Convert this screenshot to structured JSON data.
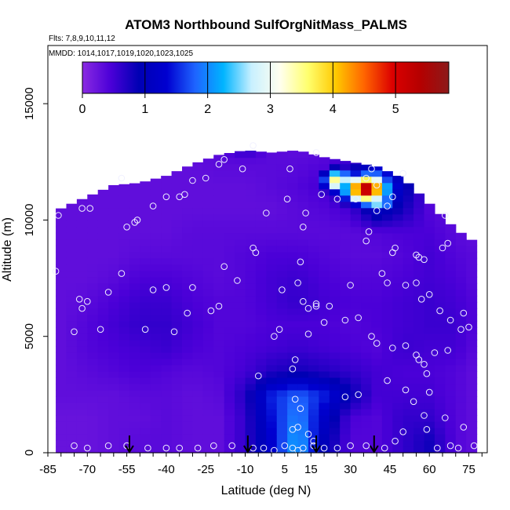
{
  "chart_data": {
    "type": "heatmap",
    "title": "ATOM3 Northbound SulfOrgNitMass_PALMS",
    "flights_text": "Flts: 7,8,9,10,11,12",
    "dates_text": "MMDD: 1014,1017,1019,1020,1023,1025",
    "xlabel": "Latitude (deg N)",
    "ylabel": "Altitude (m)",
    "xlim": [
      -85,
      82
    ],
    "ylim": [
      0,
      17500
    ],
    "x_ticks": [
      -85,
      -70,
      -55,
      -40,
      -25,
      -10,
      5,
      15,
      30,
      45,
      60,
      75
    ],
    "y_ticks": [
      0,
      5000,
      10000,
      15000
    ],
    "colorbar": {
      "range": [
        0,
        5.85
      ],
      "ticks": [
        0,
        1,
        2,
        3,
        4,
        5
      ],
      "colors": [
        "#8a2be2",
        "#4b00d8",
        "#0000b4",
        "#0000d0",
        "#1e64ff",
        "#00b4ff",
        "#c8f0ff",
        "#fffff0",
        "#ffff6e",
        "#ffc800",
        "#ff6400",
        "#dc0000",
        "#b40000",
        "#8c1a1a"
      ]
    },
    "arrow_latitudes": [
      -54,
      -9,
      17,
      39
    ],
    "field": {
      "latitudes": [
        -80,
        -70,
        -60,
        -50,
        -40,
        -30,
        -20,
        -10,
        0,
        10,
        20,
        30,
        40,
        50,
        60,
        70,
        78
      ],
      "altitudes": [
        500,
        1500,
        2500,
        3500,
        4500,
        5500,
        6500,
        7500,
        8500,
        9500,
        10500,
        11500,
        12500,
        13300
      ],
      "top_altitude_by_latitude": [
        10500,
        11000,
        11500,
        11600,
        11900,
        12400,
        12800,
        13000,
        12900,
        13000,
        12700,
        12500,
        12300,
        11800,
        10700,
        9600,
        9000
      ],
      "values": [
        [
          0.25,
          0.25,
          0.3,
          0.35,
          0.35,
          0.3,
          0.3,
          0.6,
          1.3,
          2.2,
          1.0,
          0.4,
          0.4,
          0.6,
          0.8,
          0.4,
          0.3
        ],
        [
          0.25,
          0.25,
          0.3,
          0.3,
          0.35,
          0.3,
          0.3,
          0.6,
          1.4,
          2.0,
          1.2,
          0.45,
          0.4,
          0.6,
          0.6,
          0.4,
          0.3
        ],
        [
          0.3,
          0.3,
          0.3,
          0.35,
          0.35,
          0.3,
          0.35,
          0.7,
          1.5,
          1.8,
          1.5,
          0.9,
          0.5,
          0.5,
          0.5,
          0.4,
          0.3
        ],
        [
          0.3,
          0.35,
          0.4,
          0.45,
          0.4,
          0.35,
          0.4,
          0.5,
          0.7,
          0.8,
          0.7,
          0.6,
          0.5,
          0.45,
          0.45,
          0.4,
          0.3
        ],
        [
          0.3,
          0.4,
          0.45,
          0.5,
          0.55,
          0.45,
          0.4,
          0.45,
          0.5,
          0.55,
          0.5,
          0.45,
          0.4,
          0.55,
          0.5,
          0.5,
          0.35
        ],
        [
          0.3,
          0.4,
          0.5,
          0.6,
          0.6,
          0.5,
          0.4,
          0.4,
          0.45,
          0.45,
          0.45,
          0.4,
          0.45,
          0.5,
          0.55,
          0.55,
          0.4
        ],
        [
          0.3,
          0.35,
          0.45,
          0.55,
          0.55,
          0.45,
          0.4,
          0.4,
          0.5,
          0.6,
          0.5,
          0.45,
          0.45,
          0.5,
          0.55,
          0.5,
          0.4
        ],
        [
          0.3,
          0.3,
          0.35,
          0.45,
          0.45,
          0.4,
          0.35,
          0.4,
          0.5,
          0.55,
          0.45,
          0.4,
          0.4,
          0.45,
          0.5,
          0.45,
          0.35
        ],
        [
          0.3,
          0.3,
          0.3,
          0.35,
          0.35,
          0.35,
          0.35,
          0.4,
          0.45,
          0.45,
          0.4,
          0.35,
          0.35,
          0.4,
          0.5,
          0.4,
          0.35
        ],
        [
          0.3,
          0.3,
          0.3,
          0.3,
          0.3,
          0.35,
          0.35,
          0.35,
          0.35,
          0.35,
          0.35,
          0.35,
          0.4,
          0.45,
          0.45,
          0.35,
          0.3
        ],
        [
          0.3,
          0.3,
          0.3,
          0.3,
          0.3,
          0.3,
          0.3,
          0.3,
          0.3,
          0.35,
          0.4,
          0.5,
          1.2,
          0.8,
          0.4,
          0.3,
          0.3
        ],
        [
          0.3,
          0.3,
          0.3,
          0.3,
          0.3,
          0.3,
          0.3,
          0.3,
          0.35,
          0.4,
          0.5,
          1.2,
          2.6,
          1.0,
          0.4,
          0.3,
          0.3
        ],
        [
          0.3,
          0.3,
          0.3,
          0.3,
          0.3,
          0.3,
          0.35,
          0.35,
          0.35,
          0.35,
          0.4,
          0.6,
          1.0,
          0.6,
          0.4,
          0.3,
          0.3
        ],
        [
          0.3,
          0.3,
          0.3,
          0.3,
          0.3,
          0.3,
          0.35,
          0.8,
          0.35,
          0.3,
          0.3,
          0.3,
          0.3,
          0.3,
          0.3,
          0.3,
          0.3
        ]
      ],
      "hotspots": [
        {
          "lat": 36,
          "alt": 11350,
          "value": 5.4,
          "sigma_lat": 6,
          "sigma_alt": 450
        },
        {
          "lat": 25,
          "alt": 11700,
          "value": 3.6,
          "sigma_lat": 4,
          "sigma_alt": 350
        },
        {
          "lat": 40,
          "alt": 10800,
          "value": 2.8,
          "sigma_lat": 5,
          "sigma_alt": 300
        },
        {
          "lat": 10,
          "alt": 1200,
          "value": 1.2,
          "sigma_lat": 4,
          "sigma_alt": 900
        }
      ]
    },
    "sample_points": [
      [
        -81,
        10200
      ],
      [
        -82,
        7800
      ],
      [
        -75,
        5200
      ],
      [
        -73,
        6600
      ],
      [
        -72,
        6200
      ],
      [
        -70,
        6500
      ],
      [
        -72,
        10500
      ],
      [
        -69,
        10500
      ],
      [
        -65,
        5300
      ],
      [
        -62,
        6900
      ],
      [
        -57,
        7700
      ],
      [
        -55,
        9700
      ],
      [
        -52,
        9900
      ],
      [
        -51,
        10000
      ],
      [
        -57,
        11800
      ],
      [
        -45,
        10600
      ],
      [
        -40,
        11000
      ],
      [
        -35,
        11000
      ],
      [
        -33,
        11100
      ],
      [
        -30,
        11700
      ],
      [
        -25,
        11800
      ],
      [
        -20,
        12400
      ],
      [
        -18,
        12600
      ],
      [
        -7,
        13200
      ],
      [
        -45,
        7000
      ],
      [
        -40,
        7100
      ],
      [
        -37,
        5200
      ],
      [
        -32,
        6000
      ],
      [
        -30,
        7100
      ],
      [
        -23,
        6100
      ],
      [
        -20,
        6300
      ],
      [
        -18,
        8000
      ],
      [
        -13,
        7400
      ],
      [
        -7,
        8800
      ],
      [
        -6,
        8600
      ],
      [
        -48,
        5300
      ],
      [
        -11,
        12200
      ],
      [
        -2,
        10300
      ],
      [
        6,
        10900
      ],
      [
        7,
        12200
      ],
      [
        11,
        8200
      ],
      [
        12,
        9700
      ],
      [
        13,
        10300
      ],
      [
        17,
        12900
      ],
      [
        19,
        11100
      ],
      [
        25,
        10900
      ],
      [
        32,
        10900
      ],
      [
        36,
        11800
      ],
      [
        38,
        12200
      ],
      [
        40,
        11500
      ],
      [
        40,
        10400
      ],
      [
        44,
        10600
      ],
      [
        46,
        11000
      ],
      [
        50,
        12000
      ],
      [
        37,
        9500
      ],
      [
        36,
        9100
      ],
      [
        46,
        8600
      ],
      [
        47,
        8800
      ],
      [
        55,
        8500
      ],
      [
        56,
        8400
      ],
      [
        58,
        8300
      ],
      [
        65,
        8800
      ],
      [
        67,
        9000
      ],
      [
        66,
        10200
      ],
      [
        4,
        7000
      ],
      [
        10,
        7300
      ],
      [
        12,
        6500
      ],
      [
        14,
        6200
      ],
      [
        17,
        6300
      ],
      [
        22,
        6300
      ],
      [
        28,
        5700
      ],
      [
        33,
        5800
      ],
      [
        30,
        7200
      ],
      [
        42,
        7700
      ],
      [
        44,
        7300
      ],
      [
        51,
        7200
      ],
      [
        55,
        7300
      ],
      [
        57,
        6600
      ],
      [
        60,
        6800
      ],
      [
        64,
        6100
      ],
      [
        68,
        5700
      ],
      [
        72,
        5300
      ],
      [
        73,
        6000
      ],
      [
        75,
        5400
      ],
      [
        38,
        5000
      ],
      [
        40,
        4700
      ],
      [
        46,
        4500
      ],
      [
        51,
        4600
      ],
      [
        55,
        4200
      ],
      [
        56,
        4000
      ],
      [
        58,
        3800
      ],
      [
        59,
        3400
      ],
      [
        62,
        4300
      ],
      [
        67,
        4400
      ],
      [
        3,
        5300
      ],
      [
        1,
        5000
      ],
      [
        14,
        5100
      ],
      [
        17,
        6400
      ],
      [
        20,
        5600
      ],
      [
        8,
        3600
      ],
      [
        9,
        4000
      ],
      [
        -5,
        3300
      ],
      [
        28,
        2400
      ],
      [
        33,
        2500
      ],
      [
        44,
        3100
      ],
      [
        51,
        2700
      ],
      [
        54,
        2200
      ],
      [
        58,
        1600
      ],
      [
        60,
        2600
      ],
      [
        66,
        1500
      ],
      [
        73,
        1100
      ],
      [
        77,
        300
      ],
      [
        59,
        1000
      ],
      [
        50,
        900
      ],
      [
        47,
        500
      ],
      [
        43,
        200
      ],
      [
        36,
        300
      ],
      [
        30,
        300
      ],
      [
        25,
        200
      ],
      [
        20,
        200
      ],
      [
        16,
        500
      ],
      [
        14,
        800
      ],
      [
        12,
        200
      ],
      [
        10,
        100
      ],
      [
        8,
        200
      ],
      [
        5,
        300
      ],
      [
        1,
        100
      ],
      [
        -3,
        200
      ],
      [
        -7,
        200
      ],
      [
        -15,
        300
      ],
      [
        -22,
        300
      ],
      [
        -28,
        200
      ],
      [
        -35,
        200
      ],
      [
        -40,
        200
      ],
      [
        -47,
        200
      ],
      [
        -55,
        300
      ],
      [
        -62,
        300
      ],
      [
        -70,
        200
      ],
      [
        -75,
        300
      ],
      [
        63,
        200
      ],
      [
        68,
        300
      ],
      [
        71,
        200
      ],
      [
        11,
        1900
      ],
      [
        9,
        2300
      ],
      [
        10,
        1100
      ],
      [
        8,
        1000
      ],
      [
        16,
        300
      ]
    ]
  }
}
